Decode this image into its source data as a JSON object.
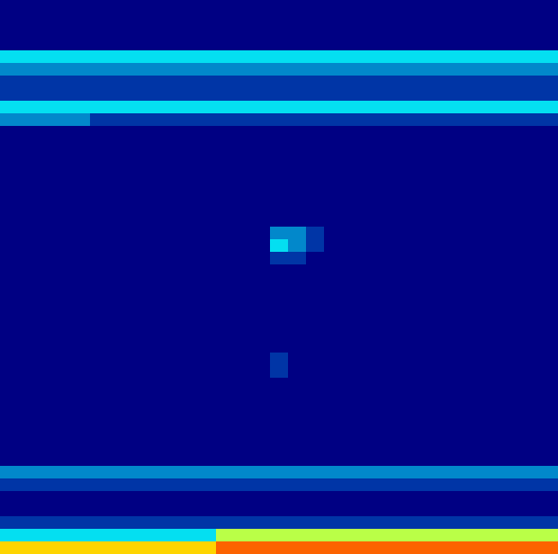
{
  "chart_data": {
    "type": "heatmap",
    "tick_labels": false,
    "zlim": [
      0,
      9
    ],
    "cells": [
      [
        0,
        0,
        0,
        0,
        0,
        0,
        0,
        0,
        0,
        0,
        0,
        0,
        0,
        0,
        0,
        0,
        0,
        0,
        0,
        0,
        0,
        0,
        0,
        0,
        0,
        0,
        0,
        0,
        0,
        0,
        0
      ],
      [
        0,
        0,
        0,
        0,
        0,
        0,
        0,
        0,
        0,
        0,
        0,
        0,
        0,
        0,
        0,
        0,
        0,
        0,
        0,
        0,
        0,
        0,
        0,
        0,
        0,
        0,
        0,
        0,
        0,
        0,
        0
      ],
      [
        0,
        0,
        0,
        0,
        0,
        0,
        0,
        0,
        0,
        0,
        0,
        0,
        0,
        0,
        0,
        0,
        0,
        0,
        0,
        0,
        0,
        0,
        0,
        0,
        0,
        0,
        0,
        0,
        0,
        0,
        0
      ],
      [
        0,
        0,
        0,
        0,
        0,
        0,
        0,
        0,
        0,
        0,
        0,
        0,
        0,
        0,
        0,
        0,
        0,
        0,
        0,
        0,
        0,
        0,
        0,
        0,
        0,
        0,
        0,
        0,
        0,
        0,
        0
      ],
      [
        3,
        3,
        3,
        3,
        3,
        3,
        3,
        3,
        3,
        3,
        3,
        3,
        3,
        3,
        3,
        3,
        3,
        3,
        3,
        3,
        3,
        3,
        3,
        3,
        3,
        3,
        3,
        3,
        3,
        3,
        3
      ],
      [
        2,
        2,
        2,
        2,
        2,
        2,
        2,
        2,
        2,
        2,
        2,
        2,
        2,
        2,
        2,
        2,
        2,
        2,
        2,
        2,
        2,
        2,
        2,
        2,
        2,
        2,
        2,
        2,
        2,
        2,
        2
      ],
      [
        1,
        1,
        1,
        1,
        1,
        1,
        1,
        1,
        1,
        1,
        1,
        1,
        1,
        1,
        1,
        1,
        1,
        1,
        1,
        1,
        1,
        1,
        1,
        1,
        1,
        1,
        1,
        1,
        1,
        1,
        1
      ],
      [
        1,
        1,
        1,
        1,
        1,
        1,
        1,
        1,
        1,
        1,
        1,
        1,
        1,
        1,
        1,
        1,
        1,
        1,
        1,
        1,
        1,
        1,
        1,
        1,
        1,
        1,
        1,
        1,
        1,
        1,
        1
      ],
      [
        3,
        3,
        3,
        3,
        3,
        3,
        3,
        3,
        3,
        3,
        3,
        3,
        3,
        3,
        3,
        3,
        3,
        3,
        3,
        3,
        3,
        3,
        3,
        3,
        3,
        3,
        3,
        3,
        3,
        3,
        3
      ],
      [
        2,
        2,
        2,
        2,
        2,
        1,
        1,
        1,
        1,
        1,
        1,
        1,
        1,
        1,
        1,
        1,
        1,
        1,
        1,
        1,
        1,
        1,
        1,
        1,
        1,
        1,
        1,
        1,
        1,
        1,
        1
      ],
      [
        0,
        0,
        0,
        0,
        0,
        0,
        0,
        0,
        0,
        0,
        0,
        0,
        0,
        0,
        0,
        0,
        0,
        0,
        0,
        0,
        0,
        0,
        0,
        0,
        0,
        0,
        0,
        0,
        0,
        0,
        0
      ],
      [
        0,
        0,
        0,
        0,
        0,
        0,
        0,
        0,
        0,
        0,
        0,
        0,
        0,
        0,
        0,
        0,
        0,
        0,
        0,
        0,
        0,
        0,
        0,
        0,
        0,
        0,
        0,
        0,
        0,
        0,
        0
      ],
      [
        0,
        0,
        0,
        0,
        0,
        0,
        0,
        0,
        0,
        0,
        0,
        0,
        0,
        0,
        0,
        0,
        0,
        0,
        0,
        0,
        0,
        0,
        0,
        0,
        0,
        0,
        0,
        0,
        0,
        0,
        0
      ],
      [
        0,
        0,
        0,
        0,
        0,
        0,
        0,
        0,
        0,
        0,
        0,
        0,
        0,
        0,
        0,
        0,
        0,
        0,
        0,
        0,
        0,
        0,
        0,
        0,
        0,
        0,
        0,
        0,
        0,
        0,
        0
      ],
      [
        0,
        0,
        0,
        0,
        0,
        0,
        0,
        0,
        0,
        0,
        0,
        0,
        0,
        0,
        0,
        0,
        0,
        0,
        0,
        0,
        0,
        0,
        0,
        0,
        0,
        0,
        0,
        0,
        0,
        0,
        0
      ],
      [
        0,
        0,
        0,
        0,
        0,
        0,
        0,
        0,
        0,
        0,
        0,
        0,
        0,
        0,
        0,
        0,
        0,
        0,
        0,
        0,
        0,
        0,
        0,
        0,
        0,
        0,
        0,
        0,
        0,
        0,
        0
      ],
      [
        0,
        0,
        0,
        0,
        0,
        0,
        0,
        0,
        0,
        0,
        0,
        0,
        0,
        0,
        0,
        0,
        0,
        0,
        0,
        0,
        0,
        0,
        0,
        0,
        0,
        0,
        0,
        0,
        0,
        0,
        0
      ],
      [
        0,
        0,
        0,
        0,
        0,
        0,
        0,
        0,
        0,
        0,
        0,
        0,
        0,
        0,
        0,
        0,
        0,
        0,
        0,
        0,
        0,
        0,
        0,
        0,
        0,
        0,
        0,
        0,
        0,
        0,
        0
      ],
      [
        0,
        0,
        0,
        0,
        0,
        0,
        0,
        0,
        0,
        0,
        0,
        0,
        0,
        0,
        0,
        2,
        2,
        1,
        0,
        0,
        0,
        0,
        0,
        0,
        0,
        0,
        0,
        0,
        0,
        0,
        0
      ],
      [
        0,
        0,
        0,
        0,
        0,
        0,
        0,
        0,
        0,
        0,
        0,
        0,
        0,
        0,
        0,
        3,
        2,
        1,
        0,
        0,
        0,
        0,
        0,
        0,
        0,
        0,
        0,
        0,
        0,
        0,
        0
      ],
      [
        0,
        0,
        0,
        0,
        0,
        0,
        0,
        0,
        0,
        0,
        0,
        0,
        0,
        0,
        0,
        1,
        1,
        0,
        0,
        0,
        0,
        0,
        0,
        0,
        0,
        0,
        0,
        0,
        0,
        0,
        0
      ],
      [
        0,
        0,
        0,
        0,
        0,
        0,
        0,
        0,
        0,
        0,
        0,
        0,
        0,
        0,
        0,
        0,
        0,
        0,
        0,
        0,
        0,
        0,
        0,
        0,
        0,
        0,
        0,
        0,
        0,
        0,
        0
      ],
      [
        0,
        0,
        0,
        0,
        0,
        0,
        0,
        0,
        0,
        0,
        0,
        0,
        0,
        0,
        0,
        0,
        0,
        0,
        0,
        0,
        0,
        0,
        0,
        0,
        0,
        0,
        0,
        0,
        0,
        0,
        0
      ],
      [
        0,
        0,
        0,
        0,
        0,
        0,
        0,
        0,
        0,
        0,
        0,
        0,
        0,
        0,
        0,
        0,
        0,
        0,
        0,
        0,
        0,
        0,
        0,
        0,
        0,
        0,
        0,
        0,
        0,
        0,
        0
      ],
      [
        0,
        0,
        0,
        0,
        0,
        0,
        0,
        0,
        0,
        0,
        0,
        0,
        0,
        0,
        0,
        0,
        0,
        0,
        0,
        0,
        0,
        0,
        0,
        0,
        0,
        0,
        0,
        0,
        0,
        0,
        0
      ],
      [
        0,
        0,
        0,
        0,
        0,
        0,
        0,
        0,
        0,
        0,
        0,
        0,
        0,
        0,
        0,
        0,
        0,
        0,
        0,
        0,
        0,
        0,
        0,
        0,
        0,
        0,
        0,
        0,
        0,
        0,
        0
      ],
      [
        0,
        0,
        0,
        0,
        0,
        0,
        0,
        0,
        0,
        0,
        0,
        0,
        0,
        0,
        0,
        0,
        0,
        0,
        0,
        0,
        0,
        0,
        0,
        0,
        0,
        0,
        0,
        0,
        0,
        0,
        0
      ],
      [
        0,
        0,
        0,
        0,
        0,
        0,
        0,
        0,
        0,
        0,
        0,
        0,
        0,
        0,
        0,
        0,
        0,
        0,
        0,
        0,
        0,
        0,
        0,
        0,
        0,
        0,
        0,
        0,
        0,
        0,
        0
      ],
      [
        0,
        0,
        0,
        0,
        0,
        0,
        0,
        0,
        0,
        0,
        0,
        0,
        0,
        0,
        0,
        1,
        0,
        0,
        0,
        0,
        0,
        0,
        0,
        0,
        0,
        0,
        0,
        0,
        0,
        0,
        0
      ],
      [
        0,
        0,
        0,
        0,
        0,
        0,
        0,
        0,
        0,
        0,
        0,
        0,
        0,
        0,
        0,
        1,
        0,
        0,
        0,
        0,
        0,
        0,
        0,
        0,
        0,
        0,
        0,
        0,
        0,
        0,
        0
      ],
      [
        0,
        0,
        0,
        0,
        0,
        0,
        0,
        0,
        0,
        0,
        0,
        0,
        0,
        0,
        0,
        0,
        0,
        0,
        0,
        0,
        0,
        0,
        0,
        0,
        0,
        0,
        0,
        0,
        0,
        0,
        0
      ],
      [
        0,
        0,
        0,
        0,
        0,
        0,
        0,
        0,
        0,
        0,
        0,
        0,
        0,
        0,
        0,
        0,
        0,
        0,
        0,
        0,
        0,
        0,
        0,
        0,
        0,
        0,
        0,
        0,
        0,
        0,
        0
      ],
      [
        0,
        0,
        0,
        0,
        0,
        0,
        0,
        0,
        0,
        0,
        0,
        0,
        0,
        0,
        0,
        0,
        0,
        0,
        0,
        0,
        0,
        0,
        0,
        0,
        0,
        0,
        0,
        0,
        0,
        0,
        0
      ],
      [
        0,
        0,
        0,
        0,
        0,
        0,
        0,
        0,
        0,
        0,
        0,
        0,
        0,
        0,
        0,
        0,
        0,
        0,
        0,
        0,
        0,
        0,
        0,
        0,
        0,
        0,
        0,
        0,
        0,
        0,
        0
      ],
      [
        0,
        0,
        0,
        0,
        0,
        0,
        0,
        0,
        0,
        0,
        0,
        0,
        0,
        0,
        0,
        0,
        0,
        0,
        0,
        0,
        0,
        0,
        0,
        0,
        0,
        0,
        0,
        0,
        0,
        0,
        0
      ],
      [
        0,
        0,
        0,
        0,
        0,
        0,
        0,
        0,
        0,
        0,
        0,
        0,
        0,
        0,
        0,
        0,
        0,
        0,
        0,
        0,
        0,
        0,
        0,
        0,
        0,
        0,
        0,
        0,
        0,
        0,
        0
      ],
      [
        0,
        0,
        0,
        0,
        0,
        0,
        0,
        0,
        0,
        0,
        0,
        0,
        0,
        0,
        0,
        0,
        0,
        0,
        0,
        0,
        0,
        0,
        0,
        0,
        0,
        0,
        0,
        0,
        0,
        0,
        0
      ],
      [
        2,
        2,
        2,
        2,
        2,
        2,
        2,
        2,
        2,
        2,
        2,
        2,
        2,
        2,
        2,
        2,
        2,
        2,
        2,
        2,
        2,
        2,
        2,
        2,
        2,
        2,
        2,
        2,
        2,
        2,
        2
      ],
      [
        1,
        1,
        1,
        1,
        1,
        1,
        1,
        1,
        1,
        1,
        1,
        1,
        1,
        1,
        1,
        1,
        1,
        1,
        1,
        1,
        1,
        1,
        1,
        1,
        1,
        1,
        1,
        1,
        1,
        1,
        1
      ],
      [
        0,
        0,
        0,
        0,
        0,
        0,
        0,
        0,
        0,
        0,
        0,
        0,
        0,
        0,
        0,
        0,
        0,
        0,
        0,
        0,
        0,
        0,
        0,
        0,
        0,
        0,
        0,
        0,
        0,
        0,
        0
      ],
      [
        0,
        0,
        0,
        0,
        0,
        0,
        0,
        0,
        0,
        0,
        0,
        0,
        0,
        0,
        0,
        0,
        0,
        0,
        0,
        0,
        0,
        0,
        0,
        0,
        0,
        0,
        0,
        0,
        0,
        0,
        0
      ],
      [
        1,
        1,
        1,
        1,
        1,
        1,
        1,
        1,
        1,
        1,
        1,
        1,
        1,
        1,
        1,
        1,
        1,
        1,
        1,
        1,
        1,
        1,
        1,
        1,
        1,
        1,
        1,
        1,
        1,
        1,
        1
      ],
      [
        3,
        3,
        3,
        3,
        3,
        3,
        3,
        3,
        3,
        3,
        3,
        3,
        5,
        5,
        5,
        5,
        5,
        5,
        5,
        5,
        5,
        5,
        5,
        5,
        5,
        5,
        5,
        5,
        5,
        5,
        5
      ],
      [
        6,
        6,
        6,
        6,
        6,
        6,
        6,
        6,
        6,
        6,
        6,
        6,
        7,
        7,
        7,
        7,
        7,
        7,
        7,
        7,
        7,
        7,
        7,
        7,
        7,
        7,
        7,
        7,
        7,
        7,
        7
      ]
    ]
  }
}
